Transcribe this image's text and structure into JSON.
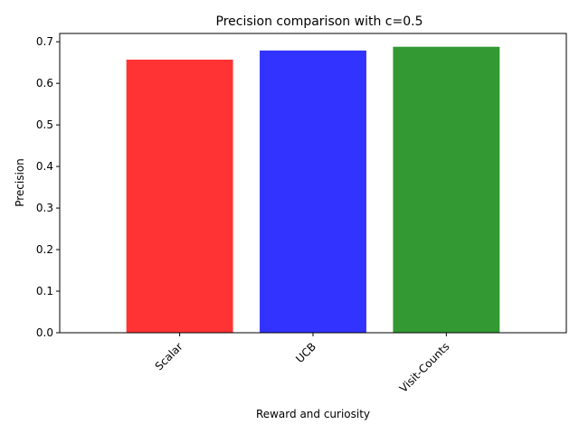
{
  "chart_data": {
    "type": "bar",
    "title": "Precision comparison with c=0.5",
    "xlabel": "Reward and curiosity",
    "ylabel": "Precision",
    "categories": [
      "Scalar",
      "UCB",
      "Visit-Counts"
    ],
    "values": [
      0.657,
      0.679,
      0.688
    ],
    "colors": [
      "#ff3333",
      "#3333ff",
      "#339933"
    ],
    "ylim": [
      0,
      0.72
    ],
    "yticks": [
      "0.0",
      "0.1",
      "0.2",
      "0.3",
      "0.4",
      "0.5",
      "0.6",
      "0.7"
    ],
    "grid": false,
    "xtick_rotation": 45
  }
}
